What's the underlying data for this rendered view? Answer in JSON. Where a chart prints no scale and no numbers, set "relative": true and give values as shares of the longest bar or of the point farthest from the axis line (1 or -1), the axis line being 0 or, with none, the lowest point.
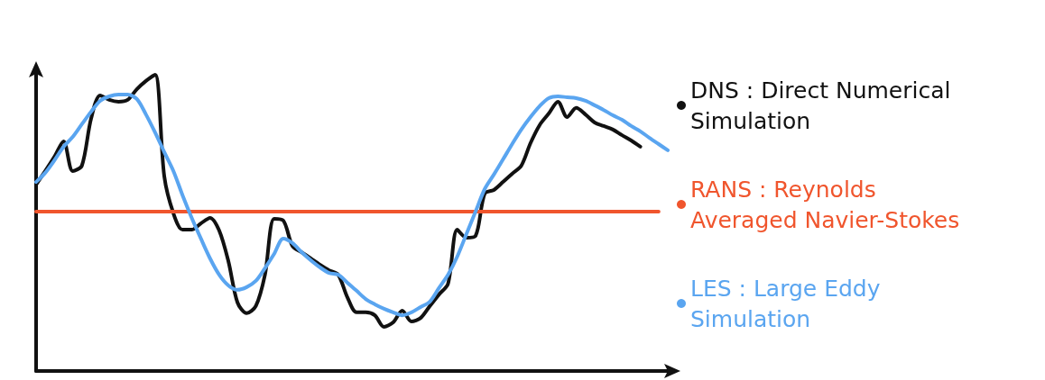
{
  "chart_data": {
    "type": "line",
    "relative": true,
    "legend": "right",
    "marker": "none",
    "grid": false,
    "categories": [
      null,
      null,
      null,
      null,
      null,
      null,
      null,
      null,
      null,
      null,
      null,
      null,
      null,
      null,
      null,
      null,
      null,
      null,
      null,
      null,
      null,
      null,
      null,
      null,
      null,
      null,
      null,
      null,
      null,
      null,
      null,
      null,
      null,
      null,
      null,
      null,
      null,
      null,
      null,
      null,
      null,
      null,
      null,
      null,
      null,
      null,
      null,
      null,
      null,
      null,
      null,
      null,
      null,
      null,
      null,
      null,
      null,
      null,
      null,
      null,
      null,
      null,
      null,
      null,
      null,
      null,
      null,
      null,
      null,
      null
    ],
    "series": [
      {
        "name": "DNS : Direct Numerical Simulation",
        "color": "#111111",
        "values": [
          0.629,
          0.675,
          0.723,
          0.775,
          0.675,
          0.693,
          0.851,
          0.93,
          0.915,
          0.909,
          0.915,
          0.951,
          0.979,
          1.0,
          0.657,
          0.532,
          0.477,
          0.477,
          0.498,
          0.517,
          0.474,
          0.371,
          0.231,
          0.195,
          0.219,
          0.325,
          0.514,
          0.508,
          0.422,
          0.401,
          0.38,
          0.359,
          0.34,
          0.325,
          0.249,
          0.198,
          0.198,
          0.188,
          0.149,
          0.164,
          0.204,
          0.167,
          0.179,
          0.219,
          0.258,
          0.295,
          0.477,
          0.45,
          0.456,
          0.599,
          0.611,
          0.638,
          0.666,
          0.693,
          0.769,
          0.83,
          0.869,
          0.909,
          0.857,
          0.888,
          0.866,
          0.839,
          0.827,
          0.815,
          0.796,
          0.778,
          0.757,
          null,
          null,
          null
        ]
      },
      {
        "name": "RANS : Reynolds Averaged Navier-Stokes",
        "color": "#f0552d",
        "values": [
          0.538,
          0.538,
          0.538,
          0.538,
          0.538,
          0.538,
          0.538,
          0.538,
          0.538,
          0.538,
          0.538,
          0.538,
          0.538,
          0.538,
          0.538,
          0.538,
          0.538,
          0.538,
          0.538,
          0.538,
          0.538,
          0.538,
          0.538,
          0.538,
          0.538,
          0.538,
          0.538,
          0.538,
          0.538,
          0.538,
          0.538,
          0.538,
          0.538,
          0.538,
          0.538,
          0.538,
          0.538,
          0.538,
          0.538,
          0.538,
          0.538,
          0.538,
          0.538,
          0.538,
          0.538,
          0.538,
          0.538,
          0.538,
          0.538,
          0.538,
          0.538,
          0.538,
          0.538,
          0.538,
          0.538,
          0.538,
          0.538,
          0.538,
          0.538,
          0.538,
          0.538,
          0.538,
          0.538,
          0.538,
          0.538,
          0.538,
          0.538,
          0.538,
          0.538,
          null
        ]
      },
      {
        "name": "LES : Large Eddy Simulation",
        "color": "#5aa5f0",
        "values": [
          0.638,
          0.669,
          0.711,
          0.757,
          0.79,
          0.833,
          0.875,
          0.912,
          0.927,
          0.933,
          0.933,
          0.918,
          0.866,
          0.805,
          0.739,
          0.675,
          0.593,
          0.517,
          0.447,
          0.38,
          0.325,
          0.289,
          0.274,
          0.283,
          0.304,
          0.347,
          0.395,
          0.447,
          0.432,
          0.401,
          0.374,
          0.35,
          0.331,
          0.325,
          0.298,
          0.271,
          0.243,
          0.225,
          0.21,
          0.198,
          0.188,
          0.198,
          0.216,
          0.234,
          0.28,
          0.325,
          0.386,
          0.462,
          0.538,
          0.614,
          0.663,
          0.714,
          0.766,
          0.815,
          0.857,
          0.894,
          0.921,
          0.927,
          0.924,
          0.921,
          0.912,
          0.897,
          0.881,
          0.863,
          0.848,
          0.827,
          0.809,
          0.787,
          0.766,
          0.745
        ]
      }
    ]
  }
}
